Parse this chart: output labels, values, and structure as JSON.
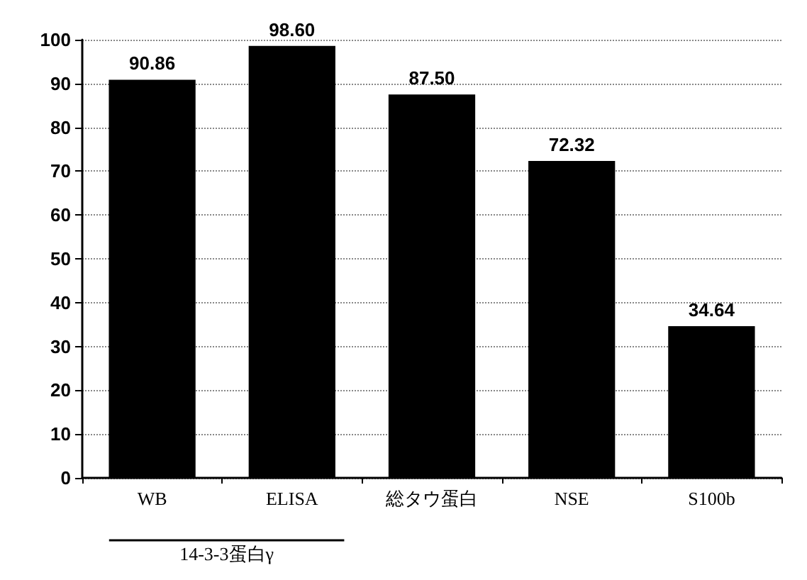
{
  "chart_data": {
    "type": "bar",
    "categories": [
      "WB",
      "ELISA",
      "総タウ蛋白",
      "NSE",
      "S100b"
    ],
    "values": [
      90.86,
      98.6,
      87.5,
      72.32,
      34.64
    ],
    "value_labels": [
      "90.86",
      "98.60",
      "87.50",
      "72.32",
      "34.64"
    ],
    "color": "#000000",
    "ylim": [
      0,
      100
    ],
    "yticks": [
      0,
      10,
      20,
      30,
      40,
      50,
      60,
      70,
      80,
      90,
      100
    ],
    "grid": "y",
    "annotations": [
      "14-3-3蛋白γ"
    ]
  }
}
